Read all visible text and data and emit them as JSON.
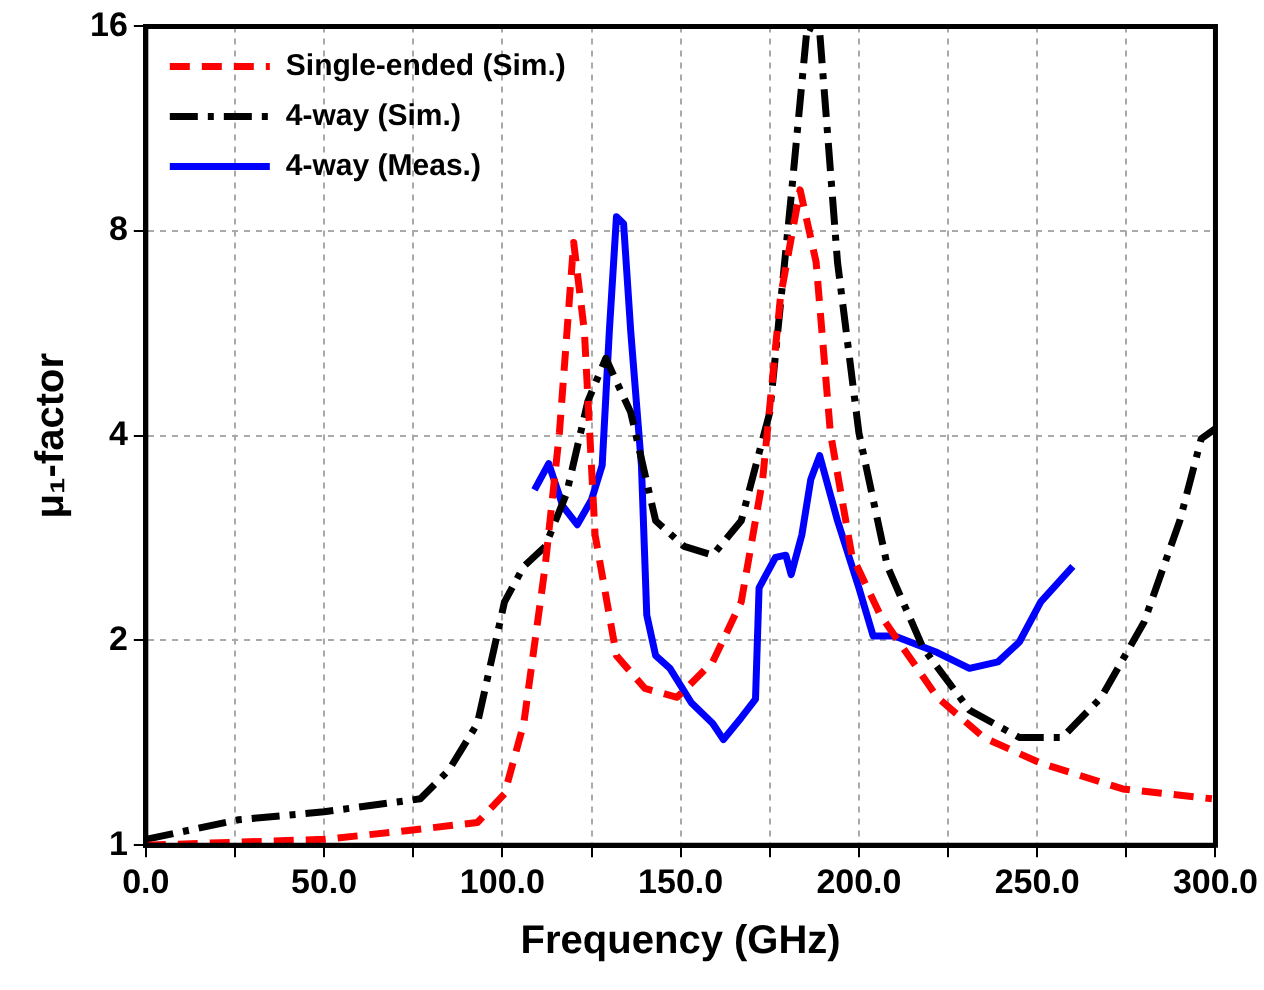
{
  "chart_data": {
    "type": "line",
    "xlabel": "Frequency (GHz)",
    "ylabel": "μ₁-factor",
    "log": "y",
    "grid": true,
    "legend": "top left",
    "marker": "none",
    "xlim": [
      0,
      300
    ],
    "xticks": [
      {
        "value": 0,
        "label": "0.0"
      },
      {
        "value": 25,
        "label": null
      },
      {
        "value": 50,
        "label": "50.0"
      },
      {
        "value": 75,
        "label": null
      },
      {
        "value": 100,
        "label": "100.0"
      },
      {
        "value": 125,
        "label": null
      },
      {
        "value": 150,
        "label": "150.0"
      },
      {
        "value": 175,
        "label": null
      },
      {
        "value": 200,
        "label": "200.0"
      },
      {
        "value": 225,
        "label": null
      },
      {
        "value": 250,
        "label": "250.0"
      },
      {
        "value": 275,
        "label": null
      },
      {
        "value": 300,
        "label": "300.0"
      }
    ],
    "ylim": [
      1,
      16
    ],
    "yticks": [
      1,
      2,
      4,
      8,
      16
    ],
    "series": [
      {
        "name": "Single-ended (Sim.)",
        "color": "#ff0000",
        "line_style": "dashed",
        "x": [
          0,
          50,
          73,
          93,
          100.6,
          106,
          112,
          116,
          120,
          123,
          126,
          132,
          140,
          149,
          159,
          167,
          173,
          178,
          183.5,
          188,
          192,
          198,
          206,
          222,
          235,
          251,
          274,
          299
        ],
        "values": [
          1.0,
          1.02,
          1.05,
          1.08,
          1.19,
          1.51,
          2.57,
          4.04,
          7.7,
          5.7,
          2.86,
          1.9,
          1.7,
          1.65,
          1.86,
          2.28,
          3.45,
          6.4,
          9.2,
          7.2,
          4.04,
          2.67,
          2.18,
          1.65,
          1.44,
          1.32,
          1.21,
          1.17
        ]
      },
      {
        "name": "4-way (Sim.)",
        "color": "#000000",
        "line_style": "dashdot",
        "x": [
          0,
          26,
          50,
          77,
          85,
          93,
          100.6,
          106,
          112,
          118,
          124,
          129,
          136,
          143,
          151,
          159,
          167,
          175,
          181,
          185.5,
          189,
          194,
          200,
          208,
          218,
          231,
          245,
          257,
          268,
          280,
          290,
          296,
          300
        ],
        "values": [
          1.02,
          1.09,
          1.12,
          1.17,
          1.29,
          1.51,
          2.28,
          2.57,
          2.75,
          3.29,
          4.5,
          5.2,
          4.33,
          3.0,
          2.75,
          2.67,
          3.0,
          4.33,
          9.0,
          16,
          15.7,
          7.2,
          4.04,
          2.57,
          1.95,
          1.58,
          1.44,
          1.44,
          1.65,
          2.13,
          3.0,
          3.96,
          4.1
        ]
      },
      {
        "name": "4-way (Meas.)",
        "color": "#0000ff",
        "line_style": "solid",
        "x": [
          109,
          113,
          117,
          121,
          125,
          128,
          130,
          132,
          134,
          136,
          139,
          140.5,
          143,
          147,
          153,
          159,
          162,
          167,
          171,
          172,
          176.6,
          179.5,
          181,
          184,
          186.5,
          189,
          194,
          200,
          204,
          210,
          222,
          231,
          239,
          245,
          251,
          260
        ],
        "values": [
          3.33,
          3.64,
          3.15,
          2.96,
          3.22,
          3.62,
          5.7,
          8.4,
          8.2,
          5.7,
          3.62,
          2.18,
          1.9,
          1.82,
          1.62,
          1.51,
          1.43,
          1.54,
          1.64,
          2.39,
          2.65,
          2.67,
          2.5,
          2.86,
          3.45,
          3.74,
          3.0,
          2.39,
          2.03,
          2.03,
          1.92,
          1.82,
          1.86,
          1.99,
          2.28,
          2.57
        ]
      }
    ]
  }
}
